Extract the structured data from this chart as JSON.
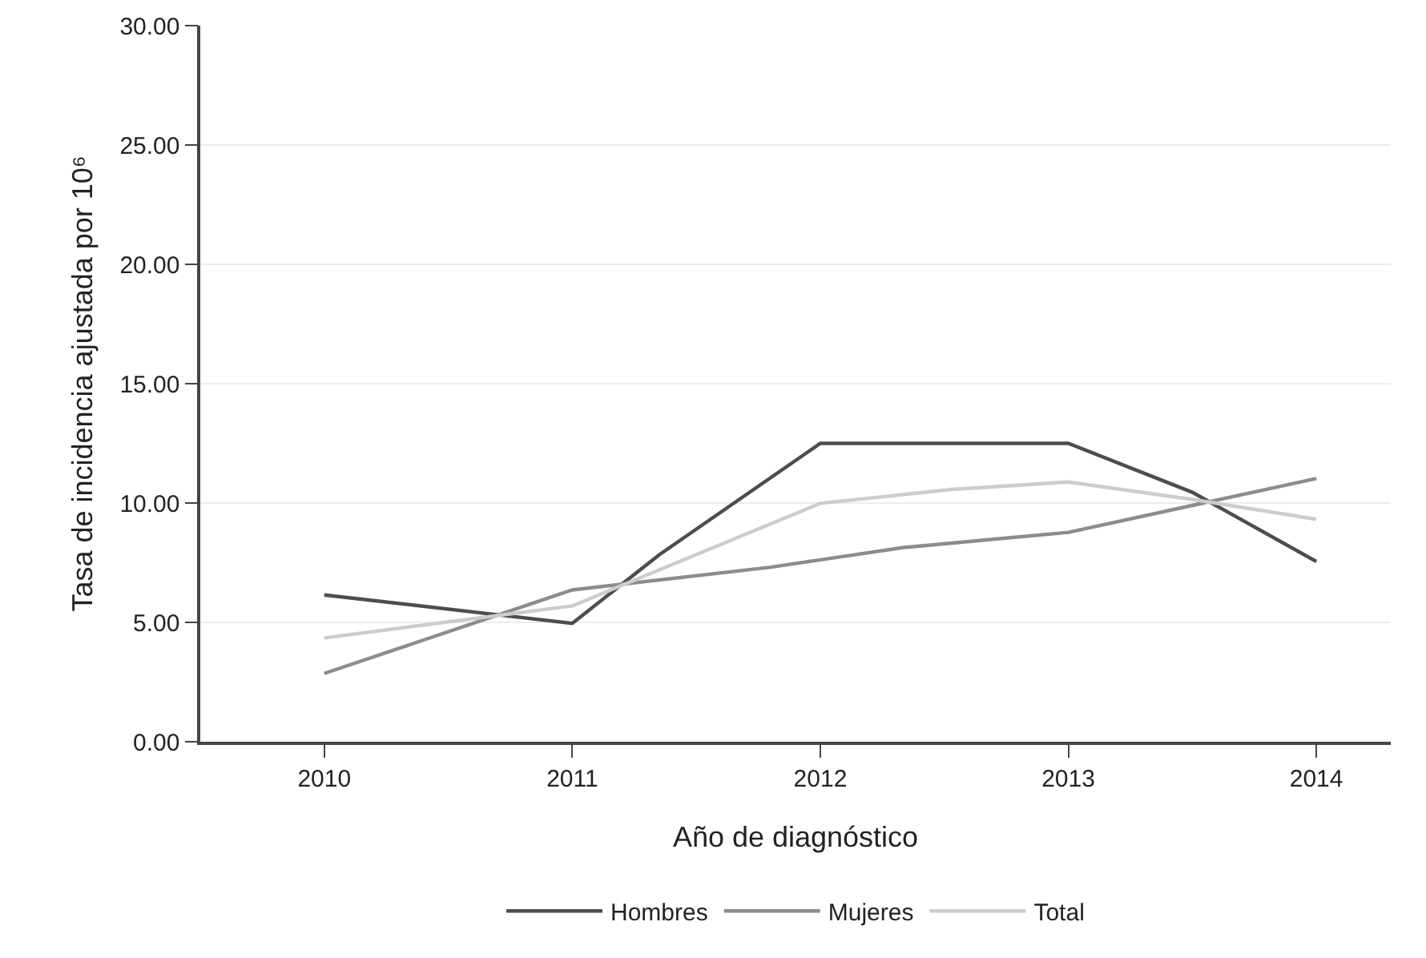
{
  "chart_data": {
    "type": "line",
    "xlabel": "Año de diagnóstico",
    "ylabel": "Tasa de incidencia ajustada por 10⁶",
    "series": [
      {
        "name": "Hombres",
        "color": "#4d4d4d",
        "x": [
          2010,
          2011,
          2011.35,
          2012,
          2013,
          2013.5,
          2014
        ],
        "values": [
          6.15,
          4.96,
          7.83,
          12.5,
          12.5,
          10.45,
          7.55
        ]
      },
      {
        "name": "Mujeres",
        "color": "#8c8c8c",
        "x": [
          2010,
          2011,
          2011.8,
          2012.33,
          2013,
          2013.5,
          2014
        ],
        "values": [
          2.86,
          6.36,
          7.31,
          8.13,
          8.77,
          9.9,
          11.03
        ]
      },
      {
        "name": "Total",
        "color": "#cccccc",
        "x": [
          2010,
          2011,
          2012,
          2012.53,
          2013,
          2013.5,
          2014
        ],
        "values": [
          4.35,
          5.69,
          9.99,
          10.57,
          10.88,
          10.15,
          9.32
        ]
      }
    ],
    "xlim": [
      2009.5,
      2014.3
    ],
    "xticks": [
      2010,
      2011,
      2012,
      2013,
      2014
    ],
    "ylim": [
      0,
      30
    ],
    "yticks": [
      {
        "value": 0,
        "label": "0.00"
      },
      {
        "value": 5,
        "label": "5.00"
      },
      {
        "value": 10,
        "label": "10.00"
      },
      {
        "value": 15,
        "label": "15.00"
      },
      {
        "value": 20,
        "label": "20.00"
      },
      {
        "value": 25,
        "label": "25.00"
      },
      {
        "value": 30,
        "label": "30.00"
      }
    ],
    "grid": "y",
    "legend": "bottom",
    "marker": "none",
    "line_style": "solid"
  }
}
